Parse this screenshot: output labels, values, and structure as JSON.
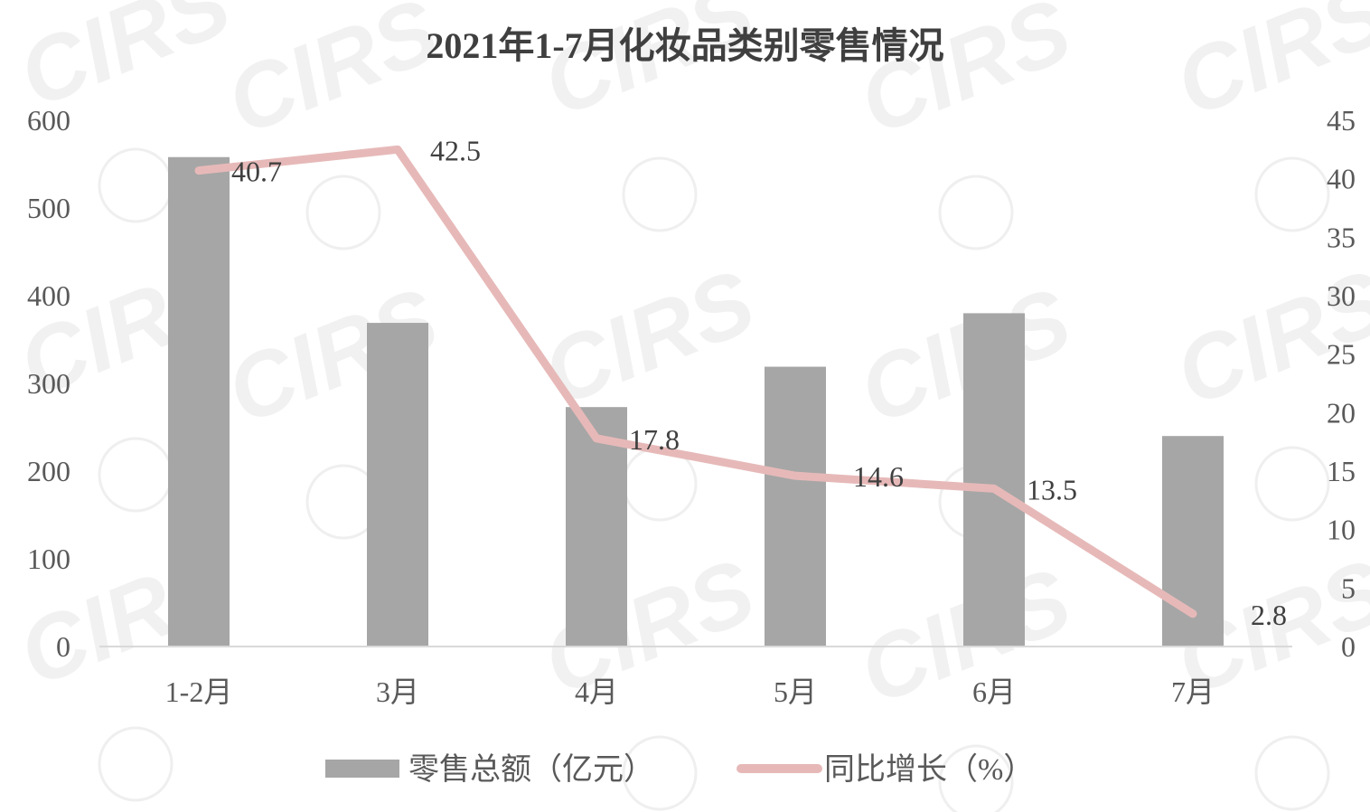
{
  "watermark": {
    "text": "CIRS"
  },
  "chart_data": {
    "type": "bar",
    "title": "2021年1-7月化妆品类别零售情况",
    "categories": [
      "1-2月",
      "3月",
      "4月",
      "5月",
      "6月",
      "7月"
    ],
    "series": [
      {
        "name": "零售总额（亿元）",
        "type": "bar",
        "axis": "left",
        "color": "#a6a6a6",
        "values": [
          558,
          369,
          273,
          319,
          380,
          240
        ]
      },
      {
        "name": "同比增长（%）",
        "type": "line",
        "axis": "right",
        "color": "#e6b9b8",
        "values": [
          40.7,
          42.5,
          17.8,
          14.6,
          13.5,
          2.8
        ],
        "labels": [
          "40.7",
          "42.5",
          "17.8",
          "14.6",
          "13.5",
          "2.8"
        ]
      }
    ],
    "y_left": {
      "lim": [
        0,
        600
      ],
      "ticks": [
        "0",
        "100",
        "200",
        "300",
        "400",
        "500",
        "600"
      ]
    },
    "y_right": {
      "lim": [
        0,
        45
      ],
      "ticks": [
        "0",
        "5",
        "10",
        "15",
        "20",
        "25",
        "30",
        "35",
        "40",
        "45"
      ]
    },
    "xlabel": "",
    "ylabel": "",
    "grid": false,
    "legend": "bottom"
  }
}
